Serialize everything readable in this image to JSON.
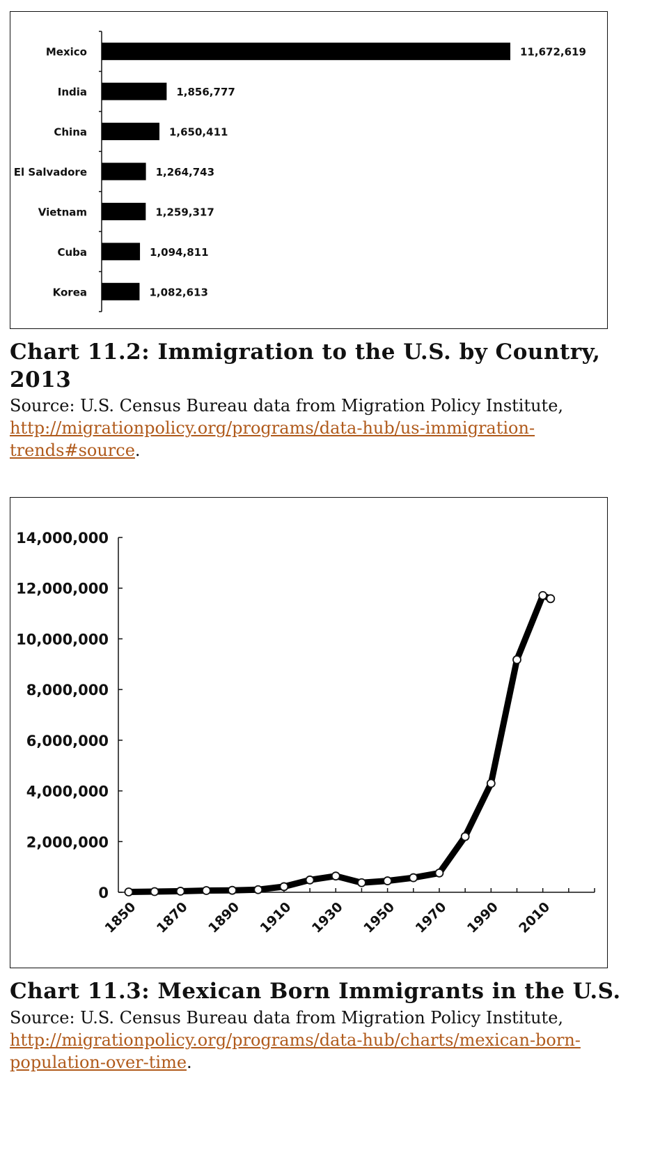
{
  "chart_data": [
    {
      "type": "bar",
      "orientation": "horizontal",
      "categories": [
        "Mexico",
        "India",
        "China",
        "El Salvadore",
        "Vietnam",
        "Cuba",
        "Korea"
      ],
      "values": [
        11672619,
        1856777,
        1650411,
        1264743,
        1259317,
        1094811,
        1082613
      ],
      "value_labels": [
        "11,672,619",
        "1,856,777",
        "1,650,411",
        "1,264,743",
        "1,259,317",
        "1,094,811",
        "1,082,613"
      ],
      "title": "Chart 11.2: Immigration to the U.S. by Country, 2013",
      "xlabel": "",
      "ylabel": "",
      "bar_color": "#000000",
      "grid": false
    },
    {
      "type": "line",
      "x": [
        1850,
        1860,
        1870,
        1880,
        1890,
        1900,
        1910,
        1920,
        1930,
        1940,
        1950,
        1960,
        1970,
        1980,
        1990,
        2000,
        2010,
        2013
      ],
      "series": [
        {
          "values": [
            13317,
            27466,
            42435,
            68399,
            77853,
            103393,
            221915,
            486418,
            641462,
            377433,
            451490,
            575902,
            759711,
            2199221,
            4298014,
            9177487,
            11711103,
            11584977
          ]
        }
      ],
      "xticks": [
        "1850",
        "1870",
        "1890",
        "1910",
        "1930",
        "1950",
        "1970",
        "1990",
        "2010"
      ],
      "yticks": [
        "0",
        "2,000,000",
        "4,000,000",
        "6,000,000",
        "8,000,000",
        "10,000,000",
        "12,000,000",
        "14,000,000"
      ],
      "xlim": [
        1846,
        2030
      ],
      "ylim": [
        0,
        14000000
      ],
      "title": "Chart 11.3: Mexican Born Immigrants in the U.S.",
      "xlabel": "",
      "ylabel": "",
      "line_color": "#000000",
      "marker": "open-circle",
      "grid": false
    }
  ],
  "captions": {
    "chart1_title": "Chart 11.2: Immigration to the U.S. by Country, 2013",
    "chart1_source_prefix": "Source: U.S. Census Bureau data from Migration Policy Institute, ",
    "chart1_link": "http://migrationpolicy.org/programs/data-hub/us-immigration-trends#source",
    "chart2_title": "Chart 11.3: Mexican Born Immigrants in the U.S.",
    "chart2_source_prefix": "Source: U.S. Census Bureau data from Migration Policy Institute, ",
    "chart2_link": "http://migrationpolicy.org/programs/data-hub/charts/mexican-born-population-over-time",
    "period": "."
  },
  "colors": {
    "link": "#b05a1b",
    "ink": "#111111"
  }
}
